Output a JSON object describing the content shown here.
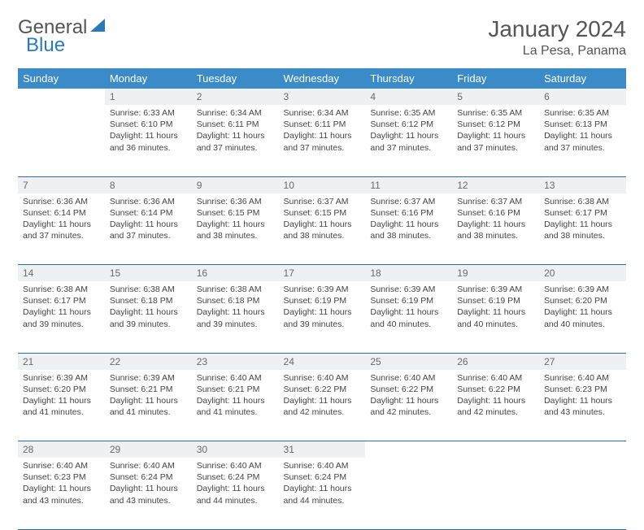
{
  "logo": {
    "text1": "General",
    "text2": "Blue"
  },
  "title": "January 2024",
  "location": "La Pesa, Panama",
  "colors": {
    "header_bg": "#3b8bc9",
    "header_text": "#ffffff",
    "daynum_bg": "#eef0f1",
    "border": "#2a6da8",
    "logo_gray": "#555555",
    "logo_blue": "#2a7ab9"
  },
  "daysOfWeek": [
    "Sunday",
    "Monday",
    "Tuesday",
    "Wednesday",
    "Thursday",
    "Friday",
    "Saturday"
  ],
  "weeks": [
    {
      "nums": [
        "",
        "1",
        "2",
        "3",
        "4",
        "5",
        "6"
      ],
      "cells": [
        null,
        {
          "sunrise": "Sunrise: 6:33 AM",
          "sunset": "Sunset: 6:10 PM",
          "d1": "Daylight: 11 hours",
          "d2": "and 36 minutes."
        },
        {
          "sunrise": "Sunrise: 6:34 AM",
          "sunset": "Sunset: 6:11 PM",
          "d1": "Daylight: 11 hours",
          "d2": "and 37 minutes."
        },
        {
          "sunrise": "Sunrise: 6:34 AM",
          "sunset": "Sunset: 6:11 PM",
          "d1": "Daylight: 11 hours",
          "d2": "and 37 minutes."
        },
        {
          "sunrise": "Sunrise: 6:35 AM",
          "sunset": "Sunset: 6:12 PM",
          "d1": "Daylight: 11 hours",
          "d2": "and 37 minutes."
        },
        {
          "sunrise": "Sunrise: 6:35 AM",
          "sunset": "Sunset: 6:12 PM",
          "d1": "Daylight: 11 hours",
          "d2": "and 37 minutes."
        },
        {
          "sunrise": "Sunrise: 6:35 AM",
          "sunset": "Sunset: 6:13 PM",
          "d1": "Daylight: 11 hours",
          "d2": "and 37 minutes."
        }
      ]
    },
    {
      "nums": [
        "7",
        "8",
        "9",
        "10",
        "11",
        "12",
        "13"
      ],
      "cells": [
        {
          "sunrise": "Sunrise: 6:36 AM",
          "sunset": "Sunset: 6:14 PM",
          "d1": "Daylight: 11 hours",
          "d2": "and 37 minutes."
        },
        {
          "sunrise": "Sunrise: 6:36 AM",
          "sunset": "Sunset: 6:14 PM",
          "d1": "Daylight: 11 hours",
          "d2": "and 37 minutes."
        },
        {
          "sunrise": "Sunrise: 6:36 AM",
          "sunset": "Sunset: 6:15 PM",
          "d1": "Daylight: 11 hours",
          "d2": "and 38 minutes."
        },
        {
          "sunrise": "Sunrise: 6:37 AM",
          "sunset": "Sunset: 6:15 PM",
          "d1": "Daylight: 11 hours",
          "d2": "and 38 minutes."
        },
        {
          "sunrise": "Sunrise: 6:37 AM",
          "sunset": "Sunset: 6:16 PM",
          "d1": "Daylight: 11 hours",
          "d2": "and 38 minutes."
        },
        {
          "sunrise": "Sunrise: 6:37 AM",
          "sunset": "Sunset: 6:16 PM",
          "d1": "Daylight: 11 hours",
          "d2": "and 38 minutes."
        },
        {
          "sunrise": "Sunrise: 6:38 AM",
          "sunset": "Sunset: 6:17 PM",
          "d1": "Daylight: 11 hours",
          "d2": "and 38 minutes."
        }
      ]
    },
    {
      "nums": [
        "14",
        "15",
        "16",
        "17",
        "18",
        "19",
        "20"
      ],
      "cells": [
        {
          "sunrise": "Sunrise: 6:38 AM",
          "sunset": "Sunset: 6:17 PM",
          "d1": "Daylight: 11 hours",
          "d2": "and 39 minutes."
        },
        {
          "sunrise": "Sunrise: 6:38 AM",
          "sunset": "Sunset: 6:18 PM",
          "d1": "Daylight: 11 hours",
          "d2": "and 39 minutes."
        },
        {
          "sunrise": "Sunrise: 6:38 AM",
          "sunset": "Sunset: 6:18 PM",
          "d1": "Daylight: 11 hours",
          "d2": "and 39 minutes."
        },
        {
          "sunrise": "Sunrise: 6:39 AM",
          "sunset": "Sunset: 6:19 PM",
          "d1": "Daylight: 11 hours",
          "d2": "and 39 minutes."
        },
        {
          "sunrise": "Sunrise: 6:39 AM",
          "sunset": "Sunset: 6:19 PM",
          "d1": "Daylight: 11 hours",
          "d2": "and 40 minutes."
        },
        {
          "sunrise": "Sunrise: 6:39 AM",
          "sunset": "Sunset: 6:19 PM",
          "d1": "Daylight: 11 hours",
          "d2": "and 40 minutes."
        },
        {
          "sunrise": "Sunrise: 6:39 AM",
          "sunset": "Sunset: 6:20 PM",
          "d1": "Daylight: 11 hours",
          "d2": "and 40 minutes."
        }
      ]
    },
    {
      "nums": [
        "21",
        "22",
        "23",
        "24",
        "25",
        "26",
        "27"
      ],
      "cells": [
        {
          "sunrise": "Sunrise: 6:39 AM",
          "sunset": "Sunset: 6:20 PM",
          "d1": "Daylight: 11 hours",
          "d2": "and 41 minutes."
        },
        {
          "sunrise": "Sunrise: 6:39 AM",
          "sunset": "Sunset: 6:21 PM",
          "d1": "Daylight: 11 hours",
          "d2": "and 41 minutes."
        },
        {
          "sunrise": "Sunrise: 6:40 AM",
          "sunset": "Sunset: 6:21 PM",
          "d1": "Daylight: 11 hours",
          "d2": "and 41 minutes."
        },
        {
          "sunrise": "Sunrise: 6:40 AM",
          "sunset": "Sunset: 6:22 PM",
          "d1": "Daylight: 11 hours",
          "d2": "and 42 minutes."
        },
        {
          "sunrise": "Sunrise: 6:40 AM",
          "sunset": "Sunset: 6:22 PM",
          "d1": "Daylight: 11 hours",
          "d2": "and 42 minutes."
        },
        {
          "sunrise": "Sunrise: 6:40 AM",
          "sunset": "Sunset: 6:22 PM",
          "d1": "Daylight: 11 hours",
          "d2": "and 42 minutes."
        },
        {
          "sunrise": "Sunrise: 6:40 AM",
          "sunset": "Sunset: 6:23 PM",
          "d1": "Daylight: 11 hours",
          "d2": "and 43 minutes."
        }
      ]
    },
    {
      "nums": [
        "28",
        "29",
        "30",
        "31",
        "",
        "",
        ""
      ],
      "cells": [
        {
          "sunrise": "Sunrise: 6:40 AM",
          "sunset": "Sunset: 6:23 PM",
          "d1": "Daylight: 11 hours",
          "d2": "and 43 minutes."
        },
        {
          "sunrise": "Sunrise: 6:40 AM",
          "sunset": "Sunset: 6:24 PM",
          "d1": "Daylight: 11 hours",
          "d2": "and 43 minutes."
        },
        {
          "sunrise": "Sunrise: 6:40 AM",
          "sunset": "Sunset: 6:24 PM",
          "d1": "Daylight: 11 hours",
          "d2": "and 44 minutes."
        },
        {
          "sunrise": "Sunrise: 6:40 AM",
          "sunset": "Sunset: 6:24 PM",
          "d1": "Daylight: 11 hours",
          "d2": "and 44 minutes."
        },
        null,
        null,
        null
      ]
    }
  ]
}
